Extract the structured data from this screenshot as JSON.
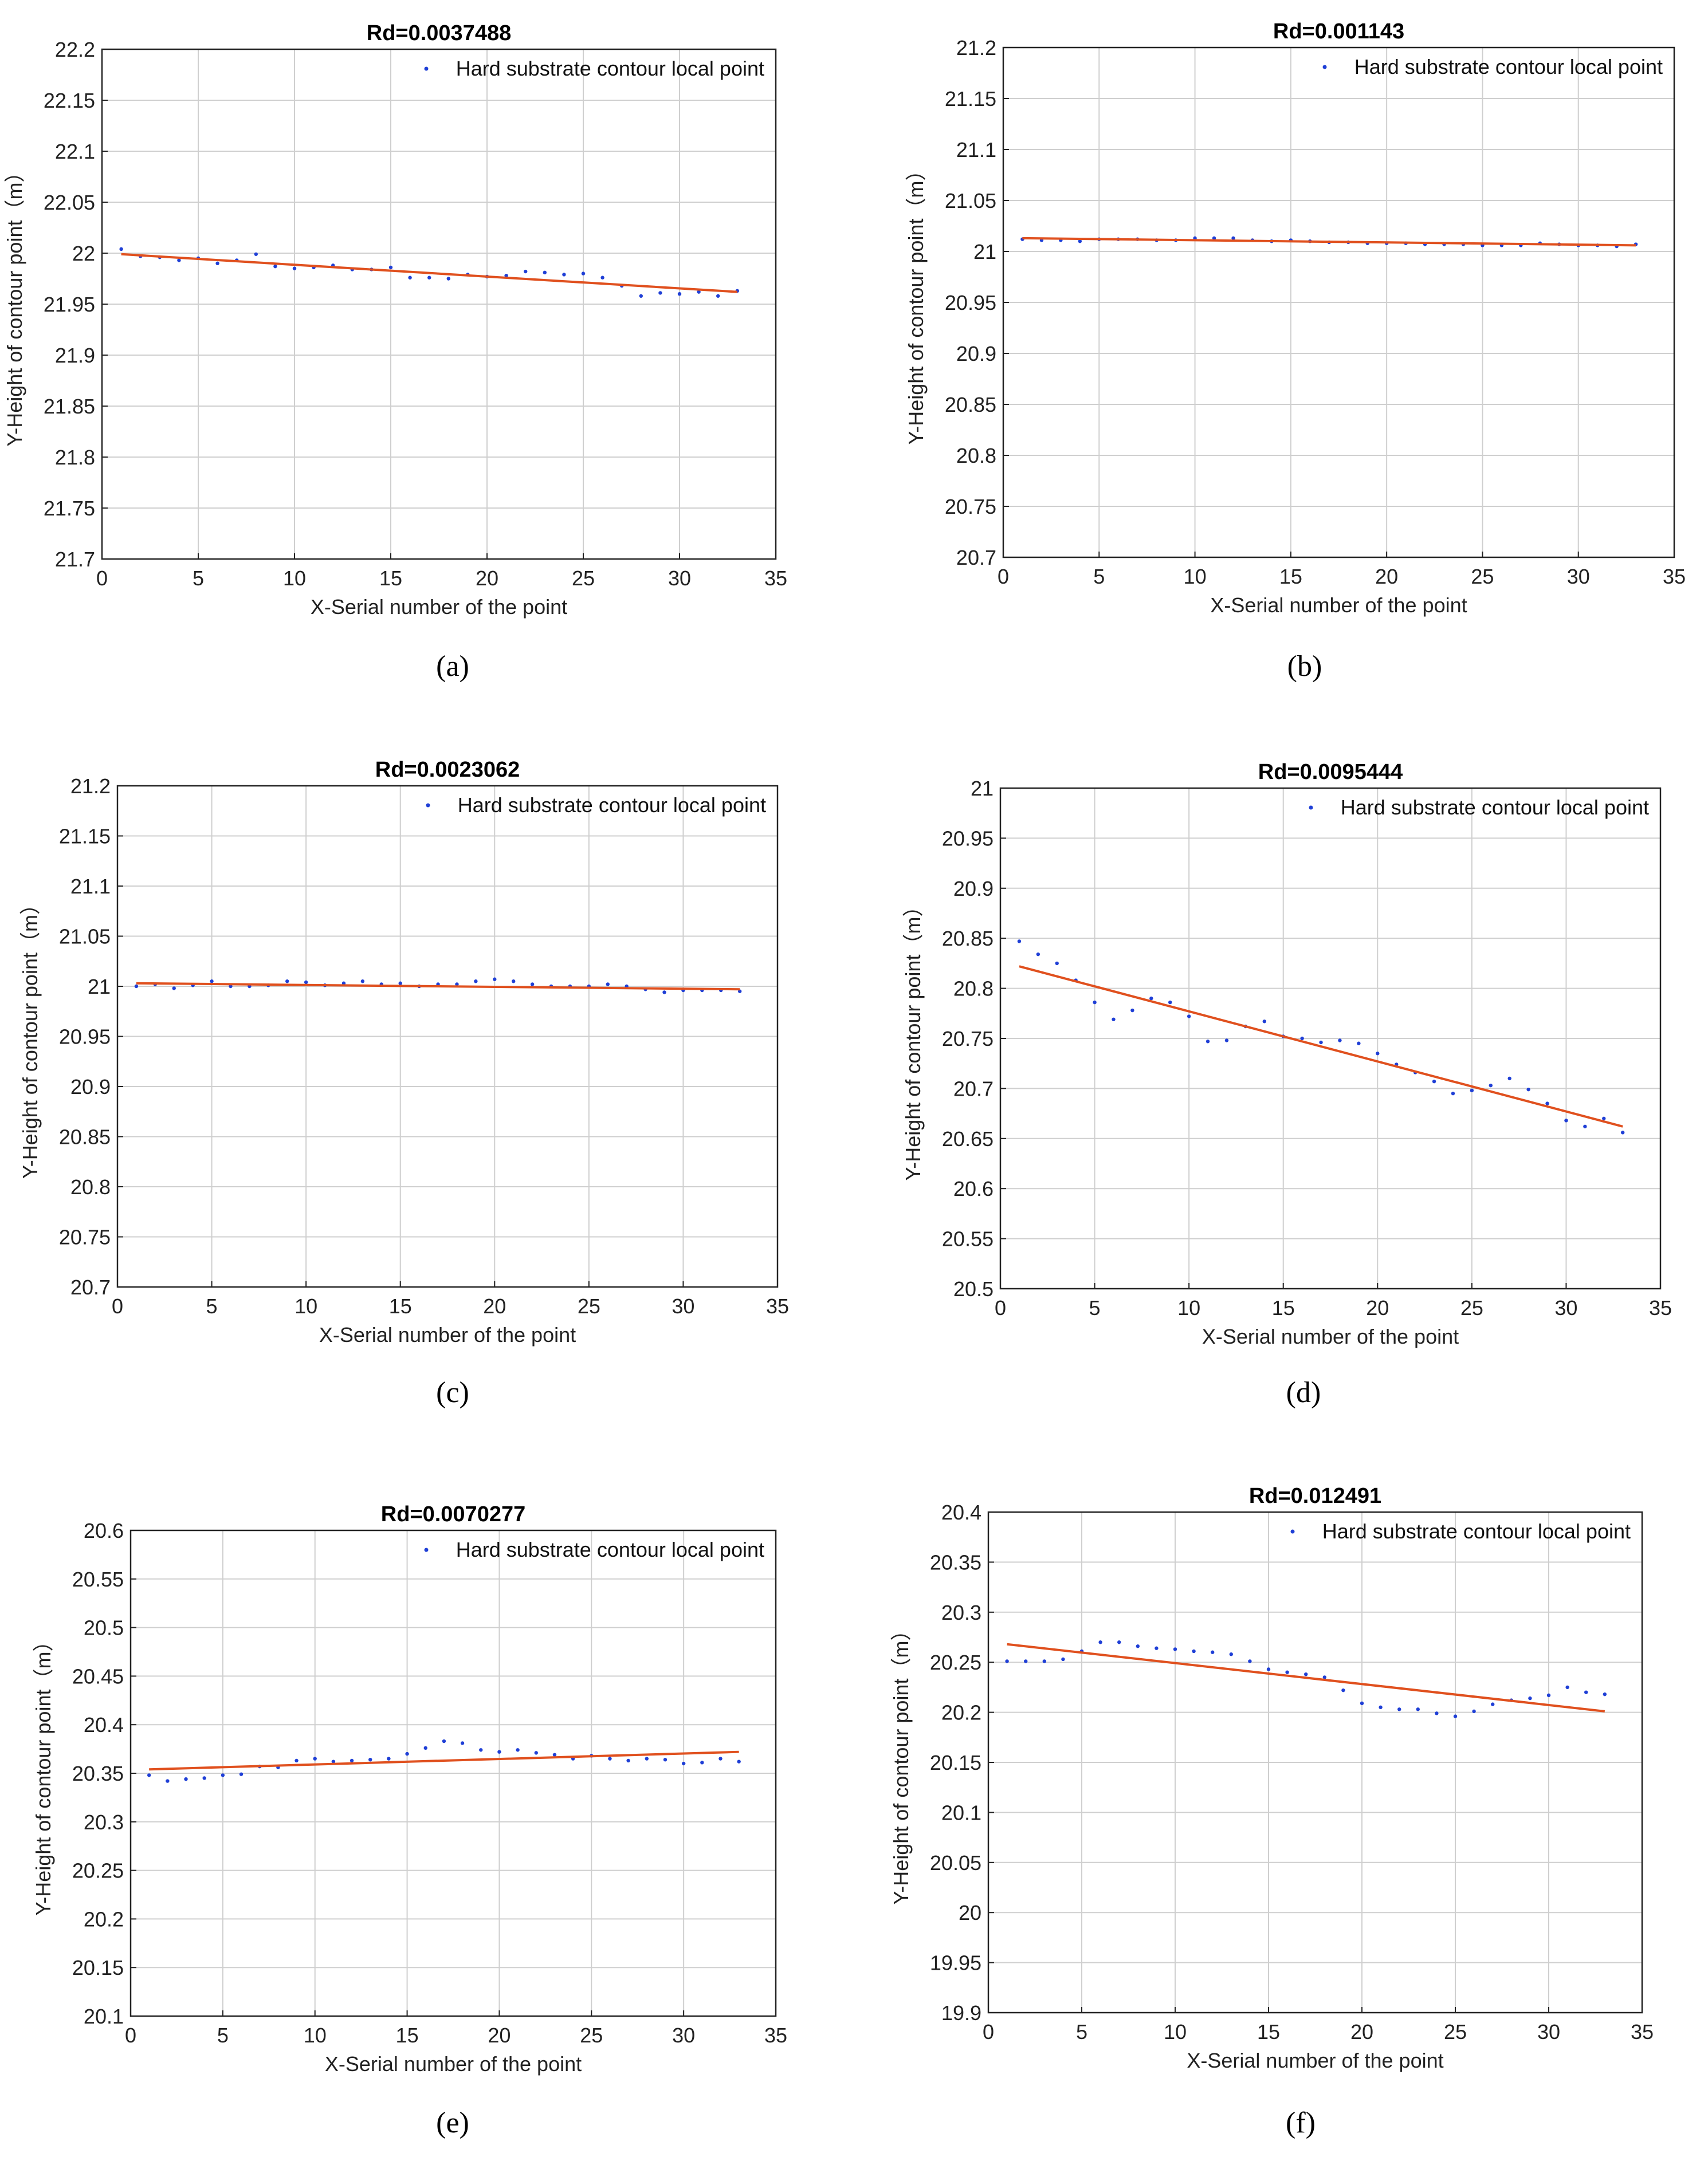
{
  "chart_data": [
    {
      "id": "a",
      "caption": "(a)",
      "type": "scatter",
      "title": "Rd=0.0037488",
      "xlabel": "X-Serial number of the point",
      "ylabel": "Y-Height of contour point（m）",
      "xlim": [
        0,
        35
      ],
      "ylim": [
        21.7,
        22.2
      ],
      "ystep": 0.05,
      "xticks": [
        "0",
        "5",
        "10",
        "15",
        "20",
        "25",
        "30",
        "35"
      ],
      "yticks": [
        "21.7",
        "21.75",
        "21.8",
        "21.85",
        "21.9",
        "21.95",
        "22",
        "22.05",
        "22.1",
        "22.15",
        "22.2"
      ],
      "legend": "Hard substrate contour local point",
      "fit_line": {
        "x": [
          1,
          33
        ],
        "y": [
          21.999,
          21.962
        ]
      },
      "x": [
        1,
        2,
        3,
        4,
        5,
        6,
        7,
        8,
        9,
        10,
        11,
        12,
        13,
        14,
        15,
        16,
        17,
        18,
        19,
        20,
        21,
        22,
        23,
        24,
        25,
        26,
        27,
        28,
        29,
        30,
        31,
        32,
        33
      ],
      "y": [
        22.004,
        21.997,
        21.996,
        21.993,
        21.995,
        21.99,
        21.993,
        21.999,
        21.987,
        21.985,
        21.986,
        21.988,
        21.984,
        21.984,
        21.986,
        21.976,
        21.976,
        21.975,
        21.979,
        21.977,
        21.978,
        21.982,
        21.981,
        21.979,
        21.98,
        21.976,
        21.968,
        21.958,
        21.961,
        21.96,
        21.962,
        21.958,
        21.963
      ]
    },
    {
      "id": "b",
      "caption": "(b)",
      "type": "scatter",
      "title": "Rd=0.001143",
      "xlabel": "X-Serial number of the point",
      "ylabel": "Y-Height of contour point（m）",
      "xlim": [
        0,
        35
      ],
      "ylim": [
        20.7,
        21.2
      ],
      "ystep": 0.05,
      "xticks": [
        "0",
        "5",
        "10",
        "15",
        "20",
        "25",
        "30",
        "35"
      ],
      "yticks": [
        "20.7",
        "20.75",
        "20.8",
        "20.85",
        "20.9",
        "20.95",
        "21",
        "21.05",
        "21.1",
        "21.15",
        "21.2"
      ],
      "legend": "Hard substrate contour local point",
      "fit_line": {
        "x": [
          1,
          33
        ],
        "y": [
          21.013,
          21.006
        ]
      },
      "x": [
        1,
        2,
        3,
        4,
        5,
        6,
        7,
        8,
        9,
        10,
        11,
        12,
        13,
        14,
        15,
        16,
        17,
        18,
        19,
        20,
        21,
        22,
        23,
        24,
        25,
        26,
        27,
        28,
        29,
        30,
        31,
        32,
        33
      ],
      "y": [
        21.012,
        21.011,
        21.011,
        21.01,
        21.012,
        21.012,
        21.012,
        21.011,
        21.011,
        21.013,
        21.013,
        21.013,
        21.011,
        21.01,
        21.011,
        21.01,
        21.009,
        21.009,
        21.008,
        21.008,
        21.008,
        21.007,
        21.007,
        21.007,
        21.006,
        21.006,
        21.006,
        21.008,
        21.007,
        21.006,
        21.006,
        21.005,
        21.007
      ]
    },
    {
      "id": "c",
      "caption": "(c)",
      "type": "scatter",
      "title": "Rd=0.0023062",
      "xlabel": "X-Serial number of the point",
      "ylabel": "Y-Height of contour point（m）",
      "xlim": [
        0,
        35
      ],
      "ylim": [
        20.7,
        21.2
      ],
      "ystep": 0.05,
      "xticks": [
        "0",
        "5",
        "10",
        "15",
        "20",
        "25",
        "30",
        "35"
      ],
      "yticks": [
        "20.7",
        "20.75",
        "20.8",
        "20.85",
        "20.9",
        "20.95",
        "21",
        "21.05",
        "21.1",
        "21.15",
        "21.2"
      ],
      "legend": "Hard substrate contour local point",
      "fit_line": {
        "x": [
          1,
          33
        ],
        "y": [
          21.003,
          20.997
        ]
      },
      "x": [
        1,
        2,
        3,
        4,
        5,
        6,
        7,
        8,
        9,
        10,
        11,
        12,
        13,
        14,
        15,
        16,
        17,
        18,
        19,
        20,
        21,
        22,
        23,
        24,
        25,
        26,
        27,
        28,
        29,
        30,
        31,
        32,
        33
      ],
      "y": [
        21.0,
        21.002,
        20.998,
        21.001,
        21.005,
        21.0,
        21.0,
        21.001,
        21.005,
        21.004,
        21.001,
        21.003,
        21.005,
        21.002,
        21.003,
        21.0,
        21.002,
        21.002,
        21.005,
        21.007,
        21.005,
        21.002,
        21.0,
        21.0,
        21.0,
        21.002,
        21.0,
        20.997,
        20.994,
        20.996,
        20.996,
        20.996,
        20.995
      ]
    },
    {
      "id": "d",
      "caption": "(d)",
      "type": "scatter",
      "title": "Rd=0.0095444",
      "xlabel": "X-Serial number of the point",
      "ylabel": "Y-Height of contour point（m）",
      "xlim": [
        0,
        35
      ],
      "ylim": [
        20.5,
        21.0
      ],
      "ystep": 0.05,
      "xticks": [
        "0",
        "5",
        "10",
        "15",
        "20",
        "25",
        "30",
        "35"
      ],
      "yticks": [
        "20.5",
        "20.55",
        "20.6",
        "20.65",
        "20.7",
        "20.75",
        "20.8",
        "20.85",
        "20.9",
        "20.95",
        "21"
      ],
      "legend": "Hard substrate contour local point",
      "fit_line": {
        "x": [
          1,
          33
        ],
        "y": [
          20.822,
          20.662
        ]
      },
      "x": [
        1,
        2,
        3,
        4,
        5,
        6,
        7,
        8,
        9,
        10,
        11,
        12,
        13,
        14,
        15,
        16,
        17,
        18,
        19,
        20,
        21,
        22,
        23,
        24,
        25,
        26,
        27,
        28,
        29,
        30,
        31,
        32,
        33
      ],
      "y": [
        20.847,
        20.834,
        20.825,
        20.808,
        20.786,
        20.769,
        20.778,
        20.79,
        20.786,
        20.772,
        20.747,
        20.748,
        20.762,
        20.767,
        20.752,
        20.75,
        20.746,
        20.748,
        20.745,
        20.735,
        20.724,
        20.716,
        20.707,
        20.695,
        20.698,
        20.703,
        20.71,
        20.699,
        20.685,
        20.668,
        20.662,
        20.67,
        20.656
      ]
    },
    {
      "id": "e",
      "caption": "(e)",
      "type": "scatter",
      "title": "Rd=0.0070277",
      "xlabel": "X-Serial number of the point",
      "ylabel": "Y-Height of contour point（m）",
      "xlim": [
        0,
        35
      ],
      "ylim": [
        20.1,
        20.6
      ],
      "ystep": 0.05,
      "xticks": [
        "0",
        "5",
        "10",
        "15",
        "20",
        "25",
        "30",
        "35"
      ],
      "yticks": [
        "20.1",
        "20.15",
        "20.2",
        "20.25",
        "20.3",
        "20.35",
        "20.4",
        "20.45",
        "20.5",
        "20.55",
        "20.6"
      ],
      "legend": "Hard substrate contour local point",
      "fit_line": {
        "x": [
          1,
          33
        ],
        "y": [
          20.354,
          20.372
        ]
      },
      "x": [
        1,
        2,
        3,
        4,
        5,
        6,
        7,
        8,
        9,
        10,
        11,
        12,
        13,
        14,
        15,
        16,
        17,
        18,
        19,
        20,
        21,
        22,
        23,
        24,
        25,
        26,
        27,
        28,
        29,
        30,
        31,
        32,
        33
      ],
      "y": [
        20.348,
        20.342,
        20.344,
        20.345,
        20.348,
        20.349,
        20.357,
        20.356,
        20.363,
        20.365,
        20.362,
        20.363,
        20.364,
        20.365,
        20.37,
        20.376,
        20.383,
        20.381,
        20.374,
        20.372,
        20.374,
        20.371,
        20.369,
        20.365,
        20.368,
        20.365,
        20.363,
        20.365,
        20.364,
        20.36,
        20.361,
        20.365,
        20.362
      ]
    },
    {
      "id": "f",
      "caption": "(f)",
      "type": "scatter",
      "title": "Rd=0.012491",
      "xlabel": "X-Serial number of the point",
      "ylabel": "Y-Height of contour point（m）",
      "xlim": [
        0,
        35
      ],
      "ylim": [
        19.9,
        20.4
      ],
      "ystep": 0.05,
      "xticks": [
        "0",
        "5",
        "10",
        "15",
        "20",
        "25",
        "30",
        "35"
      ],
      "yticks": [
        "19.9",
        "19.95",
        "20",
        "20.05",
        "20.1",
        "20.15",
        "20.2",
        "20.25",
        "20.3",
        "20.35",
        "20.4"
      ],
      "legend": "Hard substrate contour local point",
      "fit_line": {
        "x": [
          1,
          33
        ],
        "y": [
          20.268,
          20.201
        ]
      },
      "x": [
        1,
        2,
        3,
        4,
        5,
        6,
        7,
        8,
        9,
        10,
        11,
        12,
        13,
        14,
        15,
        16,
        17,
        18,
        19,
        20,
        21,
        22,
        23,
        24,
        25,
        26,
        27,
        28,
        29,
        30,
        31,
        32,
        33
      ],
      "y": [
        20.251,
        20.251,
        20.251,
        20.253,
        20.261,
        20.27,
        20.27,
        20.266,
        20.264,
        20.263,
        20.261,
        20.26,
        20.258,
        20.251,
        20.243,
        20.24,
        20.238,
        20.235,
        20.222,
        20.209,
        20.205,
        20.203,
        20.203,
        20.199,
        20.196,
        20.201,
        20.208,
        20.212,
        20.214,
        20.217,
        20.225,
        20.22,
        20.218
      ]
    }
  ]
}
